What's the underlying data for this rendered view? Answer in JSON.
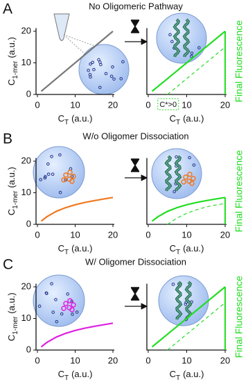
{
  "chart_data": [
    {
      "type": "line",
      "panel_label": "A",
      "title": "No Oligomeric Pathway",
      "xlabel": [
        "C",
        "T",
        "(a.u.)"
      ],
      "ylabel": [
        "C",
        "1-mer",
        "(a.u.)"
      ],
      "xlim": [
        0,
        20
      ],
      "ylim": [
        0,
        21
      ],
      "xticks": [
        0,
        10,
        20
      ],
      "yticks": [
        0,
        10,
        20
      ],
      "series": [
        {
          "color": "#777777",
          "dashed": false,
          "x": [
            1,
            20
          ],
          "values": [
            1,
            20
          ]
        }
      ]
    },
    {
      "type": "line",
      "xlabel": [
        "C",
        "T",
        "(a.u.)"
      ],
      "ylabel": "Final Fluorescence",
      "ylabel_color": "#22dd22",
      "annotation": "C*>0",
      "xlim": [
        0,
        20
      ],
      "ylim": [
        0,
        21
      ],
      "xticks": [
        0,
        10,
        20
      ],
      "series": [
        {
          "color": "#22dd22",
          "dashed": false,
          "x": [
            1,
            20
          ],
          "values": [
            1,
            20
          ]
        },
        {
          "color": "#22dd22",
          "dashed": true,
          "x": [
            5,
            20
          ],
          "values": [
            0,
            15
          ]
        }
      ]
    },
    {
      "type": "line",
      "panel_label": "B",
      "title": "W/o Oligomer Dissociation",
      "xlabel": [
        "C",
        "T",
        "(a.u.)"
      ],
      "ylabel": [
        "C",
        "1-mer",
        "(a.u.)"
      ],
      "xlim": [
        0,
        20
      ],
      "ylim": [
        0,
        21
      ],
      "xticks": [
        0,
        10,
        20
      ],
      "yticks": [
        0,
        10,
        20
      ],
      "series": [
        {
          "color": "#f07820",
          "dashed": false,
          "x": [
            1,
            2.5,
            5,
            7.5,
            10,
            12.5,
            15,
            17.5,
            20
          ],
          "values": [
            1,
            2.4,
            4.1,
            5.3,
            6.2,
            6.9,
            7.5,
            8,
            8.5
          ]
        }
      ]
    },
    {
      "type": "line",
      "xlabel": [
        "C",
        "T",
        "(a.u.)"
      ],
      "ylabel": "Final Fluorescence",
      "ylabel_color": "#22dd22",
      "xlim": [
        0,
        20
      ],
      "ylim": [
        0,
        21
      ],
      "xticks": [
        0,
        10,
        20
      ],
      "series": [
        {
          "color": "#22dd22",
          "dashed": false,
          "x": [
            1,
            2.5,
            5,
            7.5,
            10,
            12.5,
            15,
            17.5,
            20
          ],
          "values": [
            1,
            2.4,
            4.1,
            5.3,
            6.2,
            6.9,
            7.5,
            8,
            8.5
          ]
        },
        {
          "color": "#22dd22",
          "dashed": true,
          "x": [
            5,
            7.5,
            10,
            12.5,
            15,
            17.5,
            20
          ],
          "values": [
            0,
            2,
            3.5,
            4.6,
            5.5,
            6.1,
            6.6
          ]
        }
      ]
    },
    {
      "type": "line",
      "panel_label": "C",
      "title": "W/ Oligomer Dissociation",
      "xlabel": [
        "C",
        "T",
        "(a.u.)"
      ],
      "ylabel": [
        "C",
        "1-mer",
        "(a.u.)"
      ],
      "xlim": [
        0,
        20
      ],
      "ylim": [
        0,
        21
      ],
      "xticks": [
        0,
        10,
        20
      ],
      "yticks": [
        0,
        10,
        20
      ],
      "series": [
        {
          "color": "#e020e0",
          "dashed": false,
          "x": [
            1,
            2.5,
            5,
            7.5,
            10,
            12.5,
            15,
            17.5,
            20
          ],
          "values": [
            1,
            2.4,
            4.1,
            5.3,
            6.2,
            6.9,
            7.5,
            8,
            8.5
          ]
        }
      ]
    },
    {
      "type": "line",
      "xlabel": [
        "C",
        "T",
        "(a.u.)"
      ],
      "ylabel": "Final Fluorescence",
      "ylabel_color": "#22dd22",
      "xlim": [
        0,
        20
      ],
      "ylim": [
        0,
        21
      ],
      "xticks": [
        0,
        10,
        20
      ],
      "series": [
        {
          "color": "#22dd22",
          "dashed": false,
          "x": [
            1,
            20
          ],
          "values": [
            1,
            20
          ]
        },
        {
          "color": "#22dd22",
          "dashed": true,
          "x": [
            5,
            20
          ],
          "values": [
            0,
            15
          ]
        }
      ]
    }
  ]
}
